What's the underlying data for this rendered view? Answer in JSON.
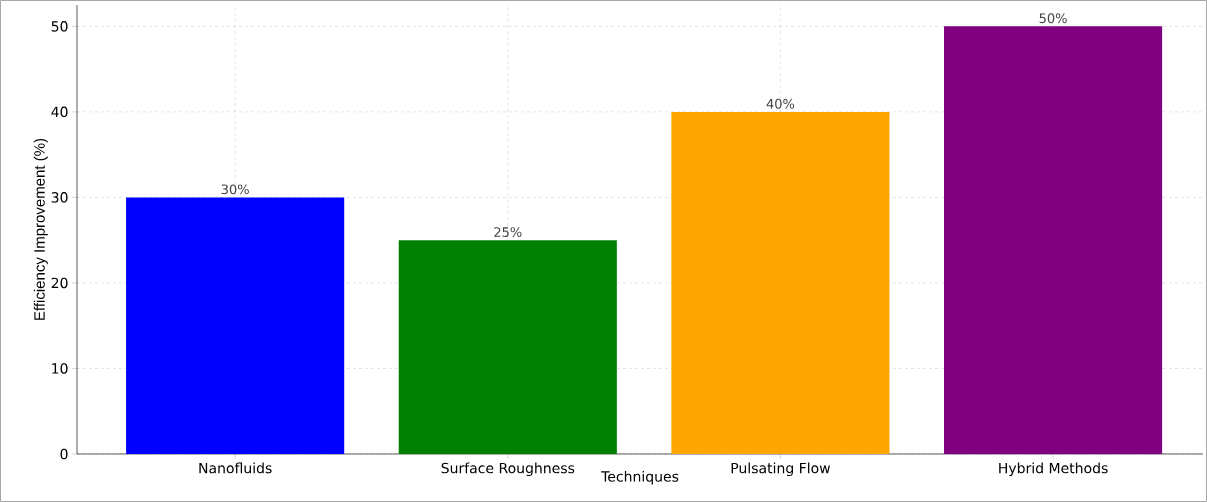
{
  "chart_data": {
    "type": "bar",
    "xlabel": "Techniques",
    "ylabel": "Efficiency Improvement (%)",
    "categories": [
      "Nanofluids",
      "Surface Roughness",
      "Pulsating Flow",
      "Hybrid Methods"
    ],
    "values": [
      30,
      25,
      40,
      50
    ],
    "colors": [
      "#0000ff",
      "#008000",
      "#ffa500",
      "#800080"
    ],
    "value_labels": [
      "30%",
      "25%",
      "40%",
      "50%"
    ],
    "ylim": [
      0,
      52.5
    ],
    "yticks": [
      0,
      10,
      20,
      30,
      40,
      50
    ],
    "grid": true
  }
}
